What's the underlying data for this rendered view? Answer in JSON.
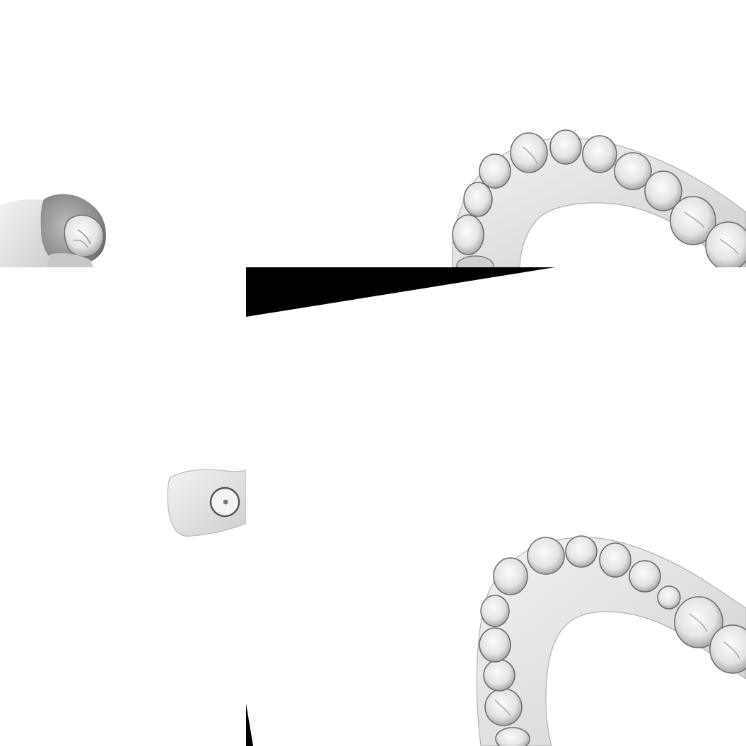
{
  "scene": {
    "background_color": "#ffffff",
    "model_color": "#e6e6e6",
    "tooth_color": "#f2f2f2",
    "shadow_color": "#7a7a7a",
    "artifact_color": "#000000",
    "tiles": [
      {
        "content": "partial-molar-scan"
      },
      {
        "content": "upper-dental-arch-scan"
      },
      {
        "content": "implant-scan-body-scan"
      },
      {
        "content": "lower-dental-arch-scan"
      }
    ]
  }
}
